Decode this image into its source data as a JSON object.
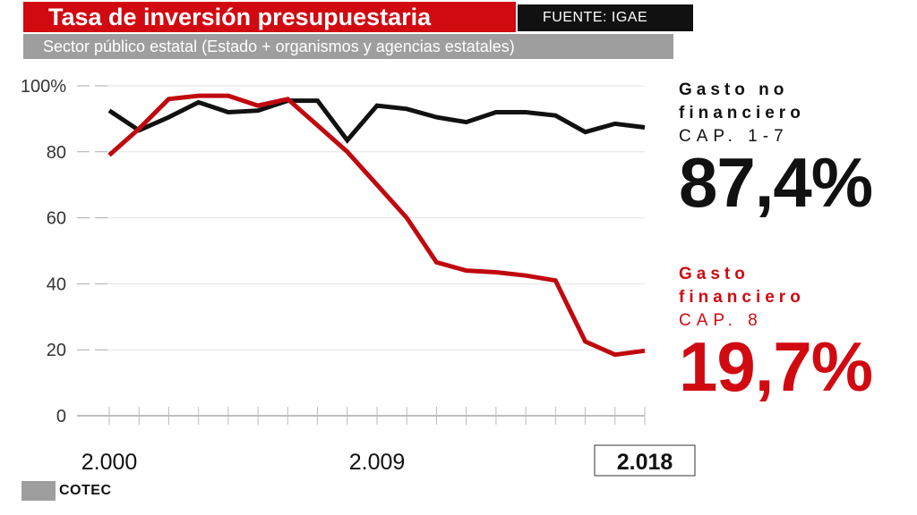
{
  "header": {
    "title": "Tasa de inversión presupuestaria",
    "source": "FUENTE: IGAE",
    "subtitle": "Sector público estatal (Estado + organismos y agencias estatales)"
  },
  "kpi": {
    "no_financiero": {
      "label_line1": "Gasto no",
      "label_line2": "financiero",
      "cap": "CAP. 1-7",
      "value": "87,4%",
      "color": "#111111"
    },
    "financiero": {
      "label_line1": "Gasto",
      "label_line2": "financiero",
      "cap": "CAP. 8",
      "value": "19,7%",
      "color": "#d10a11"
    }
  },
  "logo": {
    "text": "COTEC"
  },
  "chart_data": {
    "type": "line",
    "x": [
      2000,
      2001,
      2002,
      2003,
      2004,
      2005,
      2006,
      2007,
      2008,
      2009,
      2010,
      2011,
      2012,
      2013,
      2014,
      2015,
      2016,
      2017,
      2018
    ],
    "x_tick_labels": [
      {
        "x": 2000,
        "label": "2.000"
      },
      {
        "x": 2009,
        "label": "2.009"
      },
      {
        "x": 2018,
        "label": "2.018",
        "highlight": true
      }
    ],
    "y_ticks": [
      {
        "value": 100,
        "label": "100%"
      },
      {
        "value": 80,
        "label": "80"
      },
      {
        "value": 60,
        "label": "60"
      },
      {
        "value": 40,
        "label": "40"
      },
      {
        "value": 20,
        "label": "20"
      },
      {
        "value": 0,
        "label": "0"
      }
    ],
    "ylim": [
      0,
      100
    ],
    "xlim": [
      2000,
      2018
    ],
    "series": [
      {
        "key": "no_financiero",
        "color": "#111111",
        "values": [
          92.5,
          86.5,
          90.5,
          95,
          92,
          92.5,
          95.5,
          95.5,
          83.5,
          94,
          93,
          90.5,
          89,
          92,
          92,
          91,
          86,
          88.5,
          87.4
        ]
      },
      {
        "key": "financiero",
        "color": "#c0090f",
        "values": [
          79,
          87,
          96,
          97,
          97,
          94,
          96,
          88,
          80,
          70,
          60,
          46.5,
          44,
          43.5,
          42.5,
          41,
          22.5,
          18.5,
          19.7
        ]
      }
    ]
  }
}
